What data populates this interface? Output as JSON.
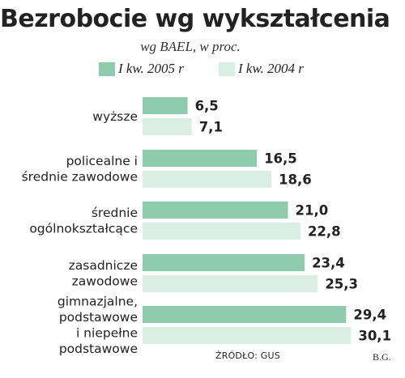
{
  "chart_data": {
    "type": "bar",
    "orientation": "horizontal",
    "title": "Bezrobocie wg wykształcenia",
    "subtitle": "wg BAEL, w proc.",
    "categories": [
      [
        "wyższe"
      ],
      [
        "policealne i",
        "średnie zawodowe"
      ],
      [
        "średnie",
        "ogólnokształcące"
      ],
      [
        "zasadnicze",
        "zawodowe"
      ],
      [
        "gimnazjalne,",
        "podstawowe",
        "i niepełne",
        "podstawowe"
      ]
    ],
    "series": [
      {
        "name": "I kw. 2005 r",
        "color": "#8fccad",
        "values": [
          6.5,
          16.5,
          21.0,
          23.4,
          29.4
        ]
      },
      {
        "name": "I kw. 2004 r",
        "color": "#dbeee3",
        "values": [
          7.1,
          18.6,
          22.8,
          25.3,
          30.1
        ]
      }
    ],
    "value_labels": [
      [
        "6,5",
        "16,5",
        "21,0",
        "23,4",
        "29,4"
      ],
      [
        "7,1",
        "18,6",
        "22,8",
        "25,3",
        "30,1"
      ]
    ],
    "legend_position": "top",
    "axes_shown": false,
    "grid": false
  },
  "footer": {
    "source": "ŹRÓDŁO: GUS",
    "author": "B.G."
  }
}
